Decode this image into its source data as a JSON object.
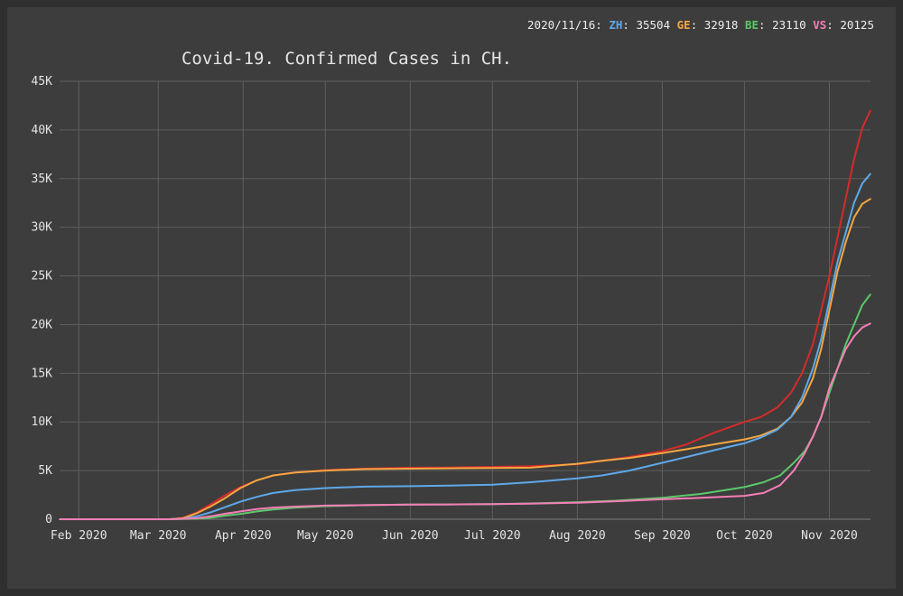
{
  "chart_data": {
    "type": "line",
    "title": "Covid-19. Confirmed Cases in CH.",
    "xlabel": "",
    "ylabel": "",
    "x_start": "2020-01-25",
    "x_end": "2020-11-16",
    "xticks": [
      {
        "date": "2020-02-01",
        "label": "Feb 2020"
      },
      {
        "date": "2020-03-01",
        "label": "Mar 2020"
      },
      {
        "date": "2020-04-01",
        "label": "Apr 2020"
      },
      {
        "date": "2020-05-01",
        "label": "May 2020"
      },
      {
        "date": "2020-06-01",
        "label": "Jun 2020"
      },
      {
        "date": "2020-07-01",
        "label": "Jul 2020"
      },
      {
        "date": "2020-08-01",
        "label": "Aug 2020"
      },
      {
        "date": "2020-09-01",
        "label": "Sep 2020"
      },
      {
        "date": "2020-10-01",
        "label": "Oct 2020"
      },
      {
        "date": "2020-11-01",
        "label": "Nov 2020"
      }
    ],
    "ylim": [
      0,
      45000
    ],
    "yticks": [
      {
        "value": 0,
        "label": "0"
      },
      {
        "value": 5000,
        "label": "5K"
      },
      {
        "value": 10000,
        "label": "10K"
      },
      {
        "value": 15000,
        "label": "15K"
      },
      {
        "value": 20000,
        "label": "20K"
      },
      {
        "value": 25000,
        "label": "25K"
      },
      {
        "value": 30000,
        "label": "30K"
      },
      {
        "value": 35000,
        "label": "35K"
      },
      {
        "value": 40000,
        "label": "40K"
      },
      {
        "value": 45000,
        "label": "45K"
      }
    ],
    "grid": true,
    "legend": {
      "date": "2020/11/16:",
      "entries": [
        {
          "abbr": "ZH",
          "value": "35504",
          "color": "#5fa8e8"
        },
        {
          "abbr": "GE",
          "value": "32918",
          "color": "#f5a742"
        },
        {
          "abbr": "BE",
          "value": "23110",
          "color": "#5cc86a"
        },
        {
          "abbr": "VS",
          "value": "20125",
          "color": "#f57eb6"
        }
      ]
    },
    "series": [
      {
        "name": "",
        "color": "#d42b2b",
        "points": [
          [
            "2020-01-25",
            0
          ],
          [
            "2020-03-05",
            0
          ],
          [
            "2020-03-10",
            150
          ],
          [
            "2020-03-15",
            700
          ],
          [
            "2020-03-20",
            1500
          ],
          [
            "2020-03-25",
            2400
          ],
          [
            "2020-03-31",
            3300
          ],
          [
            "2020-04-06",
            4000
          ],
          [
            "2020-04-12",
            4500
          ],
          [
            "2020-04-20",
            4800
          ],
          [
            "2020-05-01",
            5050
          ],
          [
            "2020-05-15",
            5200
          ],
          [
            "2020-06-01",
            5300
          ],
          [
            "2020-06-15",
            5320
          ],
          [
            "2020-07-01",
            5380
          ],
          [
            "2020-07-15",
            5450
          ],
          [
            "2020-08-01",
            5650
          ],
          [
            "2020-08-10",
            6000
          ],
          [
            "2020-08-20",
            6400
          ],
          [
            "2020-09-01",
            7000
          ],
          [
            "2020-09-10",
            7700
          ],
          [
            "2020-09-20",
            8900
          ],
          [
            "2020-10-01",
            10000
          ],
          [
            "2020-10-07",
            10500
          ],
          [
            "2020-10-13",
            11500
          ],
          [
            "2020-10-18",
            13000
          ],
          [
            "2020-10-22",
            15000
          ],
          [
            "2020-10-26",
            18000
          ],
          [
            "2020-10-29",
            21500
          ],
          [
            "2020-11-01",
            25000
          ],
          [
            "2020-11-04",
            29000
          ],
          [
            "2020-11-07",
            33000
          ],
          [
            "2020-11-10",
            37000
          ],
          [
            "2020-11-13",
            40200
          ],
          [
            "2020-11-16",
            42000
          ]
        ]
      },
      {
        "name": "",
        "color": "#f5a742",
        "points": [
          [
            "2020-01-25",
            0
          ],
          [
            "2020-03-05",
            0
          ],
          [
            "2020-03-10",
            100
          ],
          [
            "2020-03-15",
            600
          ],
          [
            "2020-03-20",
            1300
          ],
          [
            "2020-03-25",
            2100
          ],
          [
            "2020-03-31",
            3200
          ],
          [
            "2020-04-06",
            4000
          ],
          [
            "2020-04-12",
            4500
          ],
          [
            "2020-04-20",
            4800
          ],
          [
            "2020-05-01",
            5000
          ],
          [
            "2020-05-15",
            5150
          ],
          [
            "2020-06-01",
            5200
          ],
          [
            "2020-06-15",
            5230
          ],
          [
            "2020-07-01",
            5260
          ],
          [
            "2020-07-15",
            5300
          ],
          [
            "2020-08-01",
            5700
          ],
          [
            "2020-08-10",
            6000
          ],
          [
            "2020-08-20",
            6300
          ],
          [
            "2020-09-01",
            6800
          ],
          [
            "2020-09-10",
            7200
          ],
          [
            "2020-09-20",
            7700
          ],
          [
            "2020-10-01",
            8200
          ],
          [
            "2020-10-07",
            8600
          ],
          [
            "2020-10-13",
            9300
          ],
          [
            "2020-10-18",
            10500
          ],
          [
            "2020-10-22",
            12000
          ],
          [
            "2020-10-26",
            14500
          ],
          [
            "2020-10-29",
            17500
          ],
          [
            "2020-11-01",
            21500
          ],
          [
            "2020-11-04",
            25500
          ],
          [
            "2020-11-07",
            28500
          ],
          [
            "2020-11-10",
            31000
          ],
          [
            "2020-11-13",
            32400
          ],
          [
            "2020-11-16",
            32918
          ]
        ]
      },
      {
        "name": "",
        "color": "#5fa8e8",
        "points": [
          [
            "2020-01-25",
            0
          ],
          [
            "2020-03-05",
            0
          ],
          [
            "2020-03-10",
            50
          ],
          [
            "2020-03-15",
            300
          ],
          [
            "2020-03-20",
            700
          ],
          [
            "2020-03-25",
            1200
          ],
          [
            "2020-03-31",
            1800
          ],
          [
            "2020-04-06",
            2300
          ],
          [
            "2020-04-12",
            2700
          ],
          [
            "2020-04-20",
            3000
          ],
          [
            "2020-05-01",
            3200
          ],
          [
            "2020-05-15",
            3350
          ],
          [
            "2020-06-01",
            3400
          ],
          [
            "2020-06-15",
            3450
          ],
          [
            "2020-07-01",
            3550
          ],
          [
            "2020-07-15",
            3800
          ],
          [
            "2020-08-01",
            4200
          ],
          [
            "2020-08-10",
            4500
          ],
          [
            "2020-08-20",
            5000
          ],
          [
            "2020-09-01",
            5800
          ],
          [
            "2020-09-10",
            6400
          ],
          [
            "2020-09-20",
            7100
          ],
          [
            "2020-10-01",
            7800
          ],
          [
            "2020-10-07",
            8400
          ],
          [
            "2020-10-13",
            9200
          ],
          [
            "2020-10-18",
            10500
          ],
          [
            "2020-10-22",
            12500
          ],
          [
            "2020-10-26",
            15500
          ],
          [
            "2020-10-29",
            18500
          ],
          [
            "2020-11-01",
            22500
          ],
          [
            "2020-11-04",
            26500
          ],
          [
            "2020-11-07",
            29500
          ],
          [
            "2020-11-10",
            32500
          ],
          [
            "2020-11-13",
            34500
          ],
          [
            "2020-11-16",
            35504
          ]
        ]
      },
      {
        "name": "",
        "color": "#5cc86a",
        "points": [
          [
            "2020-01-25",
            0
          ],
          [
            "2020-03-05",
            0
          ],
          [
            "2020-03-15",
            50
          ],
          [
            "2020-03-20",
            150
          ],
          [
            "2020-03-25",
            350
          ],
          [
            "2020-03-31",
            550
          ],
          [
            "2020-04-06",
            800
          ],
          [
            "2020-04-12",
            1000
          ],
          [
            "2020-04-20",
            1200
          ],
          [
            "2020-05-01",
            1350
          ],
          [
            "2020-05-15",
            1450
          ],
          [
            "2020-06-01",
            1500
          ],
          [
            "2020-06-15",
            1520
          ],
          [
            "2020-07-01",
            1560
          ],
          [
            "2020-07-15",
            1620
          ],
          [
            "2020-08-01",
            1750
          ],
          [
            "2020-08-15",
            1900
          ],
          [
            "2020-09-01",
            2200
          ],
          [
            "2020-09-15",
            2600
          ],
          [
            "2020-10-01",
            3300
          ],
          [
            "2020-10-08",
            3800
          ],
          [
            "2020-10-14",
            4500
          ],
          [
            "2020-10-19",
            5800
          ],
          [
            "2020-10-23",
            7000
          ],
          [
            "2020-10-26",
            8500
          ],
          [
            "2020-10-29",
            10500
          ],
          [
            "2020-11-01",
            13000
          ],
          [
            "2020-11-04",
            15500
          ],
          [
            "2020-11-07",
            18000
          ],
          [
            "2020-11-10",
            20000
          ],
          [
            "2020-11-13",
            22000
          ],
          [
            "2020-11-16",
            23110
          ]
        ]
      },
      {
        "name": "",
        "color": "#f57eb6",
        "points": [
          [
            "2020-01-25",
            0
          ],
          [
            "2020-03-05",
            0
          ],
          [
            "2020-03-15",
            100
          ],
          [
            "2020-03-20",
            300
          ],
          [
            "2020-03-25",
            550
          ],
          [
            "2020-03-31",
            800
          ],
          [
            "2020-04-06",
            1050
          ],
          [
            "2020-04-12",
            1200
          ],
          [
            "2020-04-20",
            1300
          ],
          [
            "2020-05-01",
            1400
          ],
          [
            "2020-05-15",
            1450
          ],
          [
            "2020-06-01",
            1500
          ],
          [
            "2020-06-15",
            1520
          ],
          [
            "2020-07-01",
            1560
          ],
          [
            "2020-07-15",
            1600
          ],
          [
            "2020-08-01",
            1700
          ],
          [
            "2020-08-15",
            1850
          ],
          [
            "2020-09-01",
            2050
          ],
          [
            "2020-09-15",
            2200
          ],
          [
            "2020-10-01",
            2400
          ],
          [
            "2020-10-08",
            2700
          ],
          [
            "2020-10-14",
            3500
          ],
          [
            "2020-10-19",
            5000
          ],
          [
            "2020-10-23",
            6800
          ],
          [
            "2020-10-26",
            8500
          ],
          [
            "2020-10-29",
            10500
          ],
          [
            "2020-11-01",
            13500
          ],
          [
            "2020-11-04",
            15500
          ],
          [
            "2020-11-07",
            17500
          ],
          [
            "2020-11-10",
            18800
          ],
          [
            "2020-11-13",
            19700
          ],
          [
            "2020-11-16",
            20125
          ]
        ]
      }
    ]
  },
  "colors": {
    "page_background": "#2f2f2f",
    "chart_background": "#3d3d3d",
    "grid": "#5e5e5e",
    "text": "#e4e4e4"
  }
}
